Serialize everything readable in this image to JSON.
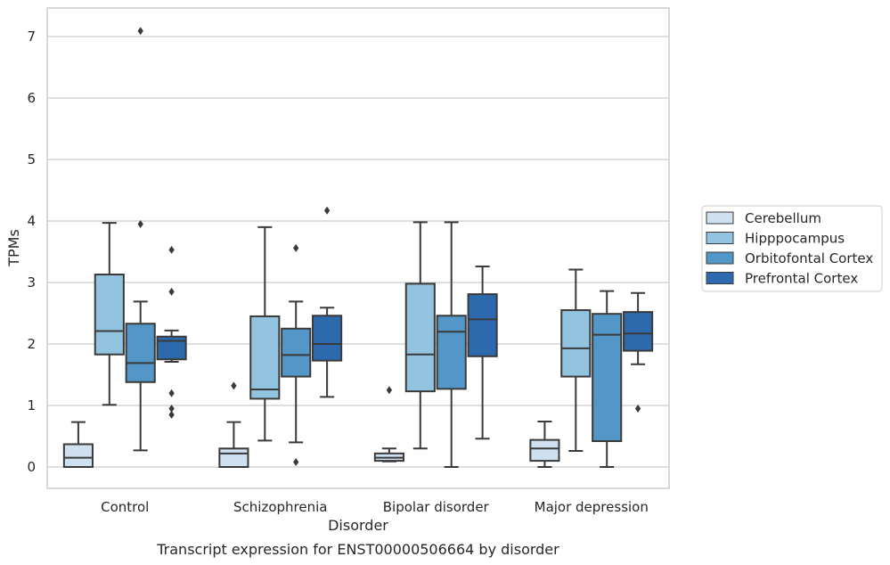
{
  "caption": "Transcript expression for ENST00000506664 by disorder",
  "chart_data": {
    "type": "box",
    "title": "",
    "xlabel": "Disorder",
    "ylabel": "TPMs",
    "ylim": [
      -0.35,
      7.45
    ],
    "yticks": [
      0,
      1,
      2,
      3,
      4,
      5,
      6,
      7
    ],
    "grid": "horizontal",
    "legend_position": "right",
    "categories": [
      "Control",
      "Schizophrenia",
      "Bipolar disorder",
      "Major depression"
    ],
    "series": [
      {
        "name": "Cerebellum",
        "color": "#cfe0f1",
        "boxes": [
          {
            "whislo": 0.0,
            "q1": 0.0,
            "med": 0.15,
            "q3": 0.37,
            "whishi": 0.73,
            "fliers": []
          },
          {
            "whislo": 0.0,
            "q1": 0.0,
            "med": 0.22,
            "q3": 0.3,
            "whishi": 0.73,
            "fliers": [
              1.32
            ]
          },
          {
            "whislo": 0.09,
            "q1": 0.1,
            "med": 0.15,
            "q3": 0.22,
            "whishi": 0.3,
            "fliers": [
              1.25
            ]
          },
          {
            "whislo": 0.0,
            "q1": 0.1,
            "med": 0.3,
            "q3": 0.44,
            "whishi": 0.74,
            "fliers": []
          }
        ]
      },
      {
        "name": "Hipppocampus",
        "color": "#93c4df",
        "boxes": [
          {
            "whislo": 1.01,
            "q1": 1.83,
            "med": 2.21,
            "q3": 3.13,
            "whishi": 3.97,
            "fliers": []
          },
          {
            "whislo": 0.43,
            "q1": 1.11,
            "med": 1.26,
            "q3": 2.45,
            "whishi": 3.9,
            "fliers": []
          },
          {
            "whislo": 0.3,
            "q1": 1.23,
            "med": 1.83,
            "q3": 2.98,
            "whishi": 3.98,
            "fliers": []
          },
          {
            "whislo": 0.26,
            "q1": 1.47,
            "med": 1.93,
            "q3": 2.55,
            "whishi": 3.21,
            "fliers": []
          }
        ]
      },
      {
        "name": "Orbitofontal Cortex",
        "color": "#5297c8",
        "boxes": [
          {
            "whislo": 0.27,
            "q1": 1.38,
            "med": 1.69,
            "q3": 2.33,
            "whishi": 2.69,
            "fliers": [
              3.95,
              7.09
            ]
          },
          {
            "whislo": 0.4,
            "q1": 1.47,
            "med": 1.82,
            "q3": 2.25,
            "whishi": 2.69,
            "fliers": [
              3.56,
              0.08
            ]
          },
          {
            "whislo": 0.0,
            "q1": 1.27,
            "med": 2.2,
            "q3": 2.46,
            "whishi": 3.98,
            "fliers": []
          },
          {
            "whislo": 0.0,
            "q1": 0.42,
            "med": 2.15,
            "q3": 2.49,
            "whishi": 2.86,
            "fliers": []
          }
        ]
      },
      {
        "name": "Prefrontal Cortex",
        "color": "#2c6aad",
        "boxes": [
          {
            "whislo": 1.71,
            "q1": 1.75,
            "med": 2.05,
            "q3": 2.12,
            "whishi": 2.22,
            "fliers": [
              3.53,
              2.85,
              1.2,
              0.95,
              0.85
            ]
          },
          {
            "whislo": 1.14,
            "q1": 1.73,
            "med": 2.0,
            "q3": 2.46,
            "whishi": 2.59,
            "fliers": [
              4.17
            ]
          },
          {
            "whislo": 0.46,
            "q1": 1.8,
            "med": 2.4,
            "q3": 2.81,
            "whishi": 3.26,
            "fliers": []
          },
          {
            "whislo": 1.67,
            "q1": 1.89,
            "med": 2.17,
            "q3": 2.52,
            "whishi": 2.83,
            "fliers": [
              0.95
            ]
          }
        ]
      }
    ]
  }
}
